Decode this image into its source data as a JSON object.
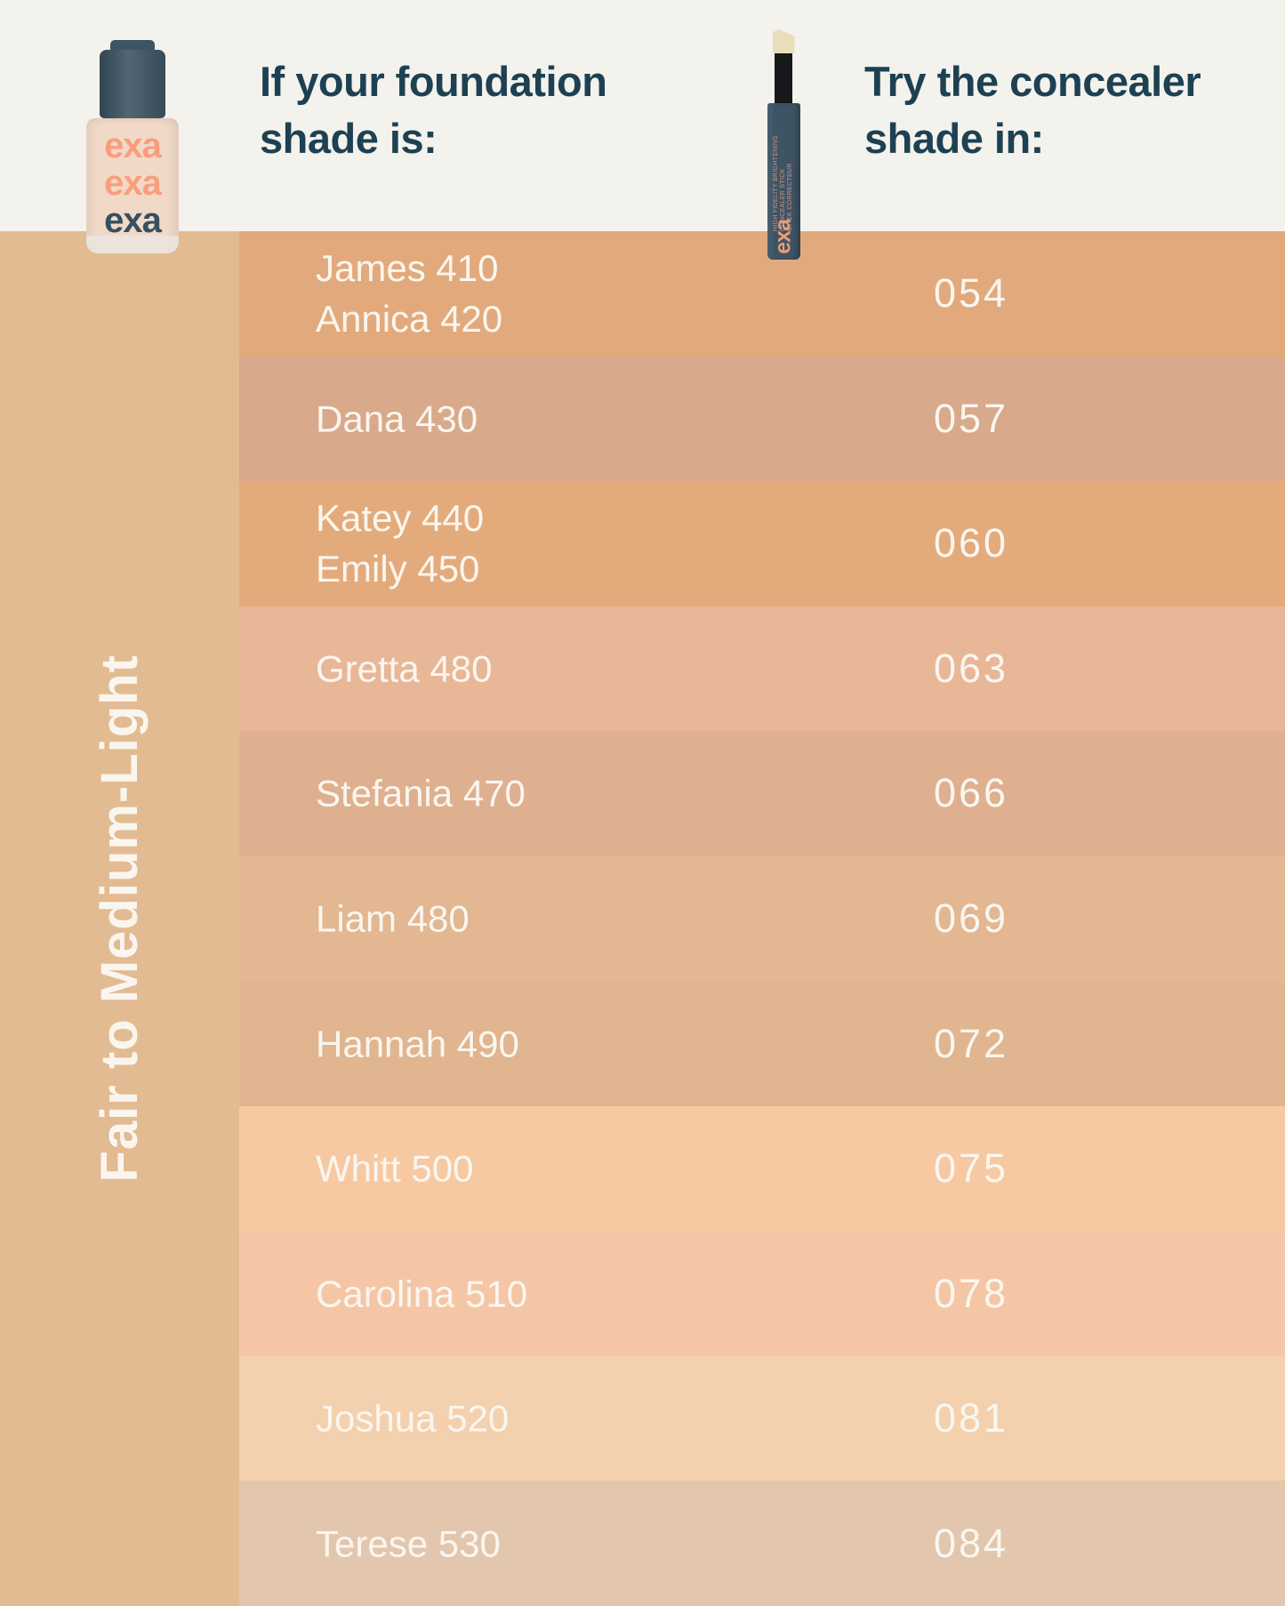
{
  "chart_data": {
    "type": "table",
    "columns": [
      "If your foundation shade is:",
      "Try the concealer shade in:"
    ],
    "row_group_label": "Fair to Medium-Light",
    "rows": [
      {
        "foundation_shades": [
          "James 410",
          "Annica 420"
        ],
        "concealer_shade": "054",
        "swatch": "#e2aa7c"
      },
      {
        "foundation_shades": [
          "Dana 430"
        ],
        "concealer_shade": "057",
        "swatch": "#d9a98b"
      },
      {
        "foundation_shades": [
          "Katey 440",
          "Emily 450"
        ],
        "concealer_shade": "060",
        "swatch": "#e3ab7c"
      },
      {
        "foundation_shades": [
          "Gretta 480"
        ],
        "concealer_shade": "063",
        "swatch": "#e8b798"
      },
      {
        "foundation_shades": [
          "Stefania 470"
        ],
        "concealer_shade": "066",
        "swatch": "#dfb08f"
      },
      {
        "foundation_shades": [
          "Liam 480"
        ],
        "concealer_shade": "069",
        "swatch": "#e2b791"
      },
      {
        "foundation_shades": [
          "Hannah 490"
        ],
        "concealer_shade": "072",
        "swatch": "#e0b58f"
      },
      {
        "foundation_shades": [
          "Whitt 500"
        ],
        "concealer_shade": "075",
        "swatch": "#f7c9a2"
      },
      {
        "foundation_shades": [
          "Carolina 510"
        ],
        "concealer_shade": "078",
        "swatch": "#f5c6a6"
      },
      {
        "foundation_shades": [
          "Joshua 520"
        ],
        "concealer_shade": "081",
        "swatch": "#f3d1ae"
      },
      {
        "foundation_shades": [
          "Terese 530"
        ],
        "concealer_shade": "084",
        "swatch": "#e3c6ae"
      }
    ]
  },
  "header": {
    "left_title": "If your foundation\nshade is:",
    "right_title": "Try the concealer\nshade in:"
  },
  "sidebar": {
    "label": "Fair to Medium-Light"
  },
  "products": {
    "foundation_bottle": {
      "logo_lines": [
        "exa",
        "exa",
        "exa"
      ]
    },
    "concealer_stick": {
      "label_text": "HIGH FIDELITY BRIGHTENING\nCONCEALER STICK\nSTICK CORRECTEUR",
      "logo": "exa"
    }
  },
  "colors": {
    "header_bg": "#f4f2ec",
    "sidebar_bg": "#e3bb92",
    "title_text": "#1d4153",
    "row_text": "#faf6ef",
    "bottle_cap": "#3e5464",
    "bottle_glass": "#f1d9c8",
    "logo_salmon": "#f99e7d",
    "logo_slate": "#36505f",
    "concealer_tip": "#e9ddbb",
    "concealer_shaft": "#17181a",
    "concealer_body": "#3d5465",
    "concealer_accent": "#e89b75"
  }
}
